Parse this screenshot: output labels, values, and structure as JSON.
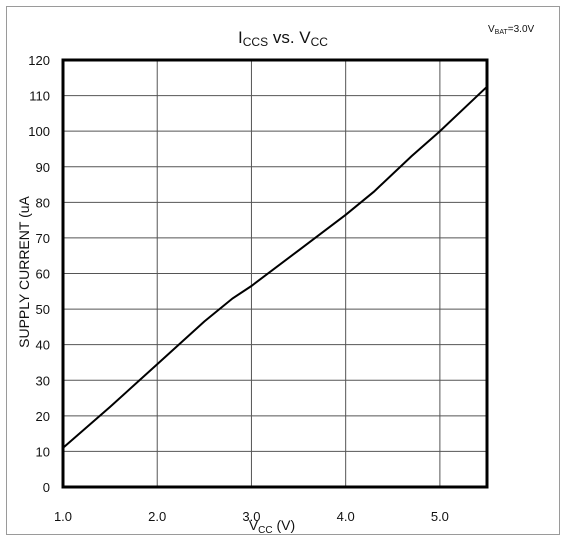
{
  "chart_data": {
    "type": "line",
    "title": {
      "main": "I",
      "sub": "CCS",
      "mid": " vs. V",
      "sub2": "CC"
    },
    "annotation": {
      "main": "V",
      "sub": "BAT",
      "rest": "=3.0V"
    },
    "xlabel": {
      "main": "V",
      "sub": "CC",
      "rest": " (V)"
    },
    "ylabel": "SUPPLY CURRENT (uA",
    "xlim": [
      1.0,
      5.5
    ],
    "ylim": [
      0,
      120
    ],
    "x_ticks": [
      "1.0",
      "2.0",
      "3.0",
      "4.0",
      "5.0"
    ],
    "x_tick_values": [
      1.0,
      2.0,
      3.0,
      4.0,
      5.0
    ],
    "y_ticks": [
      "0",
      "10",
      "20",
      "30",
      "40",
      "50",
      "60",
      "70",
      "80",
      "90",
      "100",
      "110",
      "120"
    ],
    "y_tick_values": [
      0,
      10,
      20,
      30,
      40,
      50,
      60,
      70,
      80,
      90,
      100,
      110,
      120
    ],
    "grid": true,
    "series": [
      {
        "color": "#000000",
        "x": [
          1.0,
          1.5,
          2.0,
          2.5,
          2.8,
          3.0,
          3.5,
          4.0,
          4.3,
          4.7,
          5.0,
          5.5
        ],
        "y": [
          11,
          22.5,
          34.5,
          46.5,
          53,
          56.5,
          66.5,
          76.5,
          83,
          93,
          100,
          112.5
        ]
      }
    ]
  }
}
